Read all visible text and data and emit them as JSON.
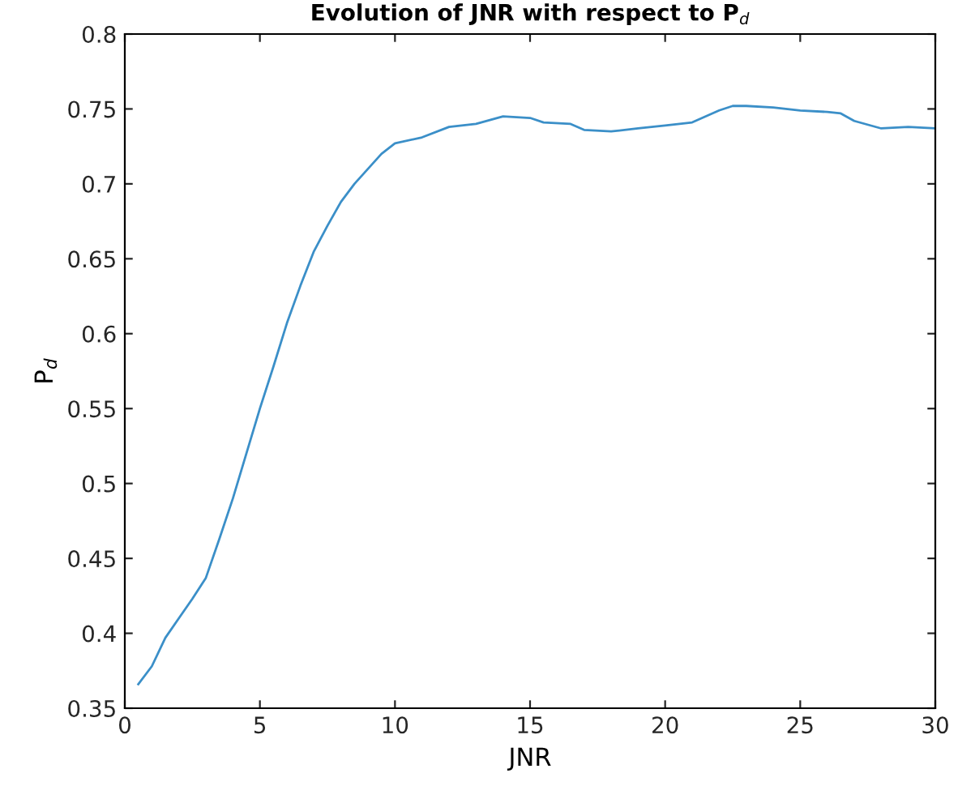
{
  "chart_data": {
    "type": "line",
    "title": "Evolution of JNR with respect to P$_{d}$",
    "xlabel": "JNR",
    "ylabel": "P$_{d}$",
    "x": [
      0.5,
      1,
      1.5,
      2,
      2.5,
      3,
      3.5,
      4,
      4.5,
      5,
      5.5,
      6,
      6.5,
      7,
      7.5,
      8,
      8.5,
      9,
      9.5,
      10,
      11,
      12,
      13,
      14,
      15,
      15.5,
      16.5,
      17,
      18,
      19,
      20,
      21,
      22,
      22.5,
      23,
      24,
      25,
      26,
      26.5,
      27,
      28,
      29,
      30
    ],
    "series": [
      {
        "color": "#3b8fc8",
        "values": [
          0.366,
          0.378,
          0.397,
          0.41,
          0.423,
          0.437,
          0.463,
          0.49,
          0.52,
          0.55,
          0.578,
          0.607,
          0.632,
          0.655,
          0.672,
          0.688,
          0.7,
          0.71,
          0.72,
          0.727,
          0.731,
          0.738,
          0.74,
          0.745,
          0.744,
          0.741,
          0.74,
          0.736,
          0.735,
          0.737,
          0.739,
          0.741,
          0.749,
          0.752,
          0.752,
          0.751,
          0.749,
          0.748,
          0.747,
          0.742,
          0.737,
          0.738,
          0.737
        ]
      }
    ],
    "xlim": [
      0,
      30
    ],
    "xticks": [
      0,
      5,
      10,
      15,
      20,
      25,
      30
    ],
    "ylim": [
      0.35,
      0.8
    ],
    "yticks": [
      0.35,
      0.4,
      0.45,
      0.5,
      0.55,
      0.6,
      0.65,
      0.7,
      0.75,
      0.8
    ],
    "grid": false,
    "legend": false
  }
}
